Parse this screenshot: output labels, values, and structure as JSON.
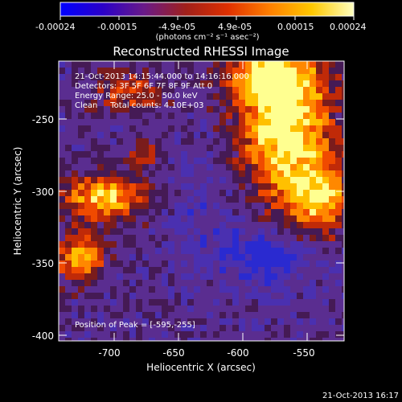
{
  "colorbar": {
    "ticks": [
      "-0.00024",
      "-0.00015",
      "-4.9e-05",
      "4.9e-05",
      "0.00015",
      "0.00024"
    ],
    "units_label": "(photons cm⁻² s⁻¹ asec⁻²)",
    "stops": [
      "#0000ff",
      "#2a00c8",
      "#6a1a88",
      "#a0201a",
      "#e03000",
      "#ff8000",
      "#ffc800",
      "#ffffc0"
    ]
  },
  "title": "Reconstructed RHESSI Image",
  "info_lines": [
    "21-Oct-2013 14:15:44.000 to 14:16:16.000",
    "Detectors: 3F 5F 6F 7F 8F 9F Att 0",
    "Energy Range: 25.0 - 50.0 keV",
    "Clean     Total counts: 4.10E+03"
  ],
  "peak_text": "Position of Peak = [-595,-255]",
  "axes": {
    "x_label": "Heliocentric X (arcsec)",
    "y_label": "Heliocentric Y (arcsec)",
    "x_ticks": [
      "-700",
      "-650",
      "-600",
      "-550"
    ],
    "y_ticks": [
      "-250",
      "-300",
      "-350",
      "-400"
    ]
  },
  "footer_date": "21-Oct-2013 16:17"
}
